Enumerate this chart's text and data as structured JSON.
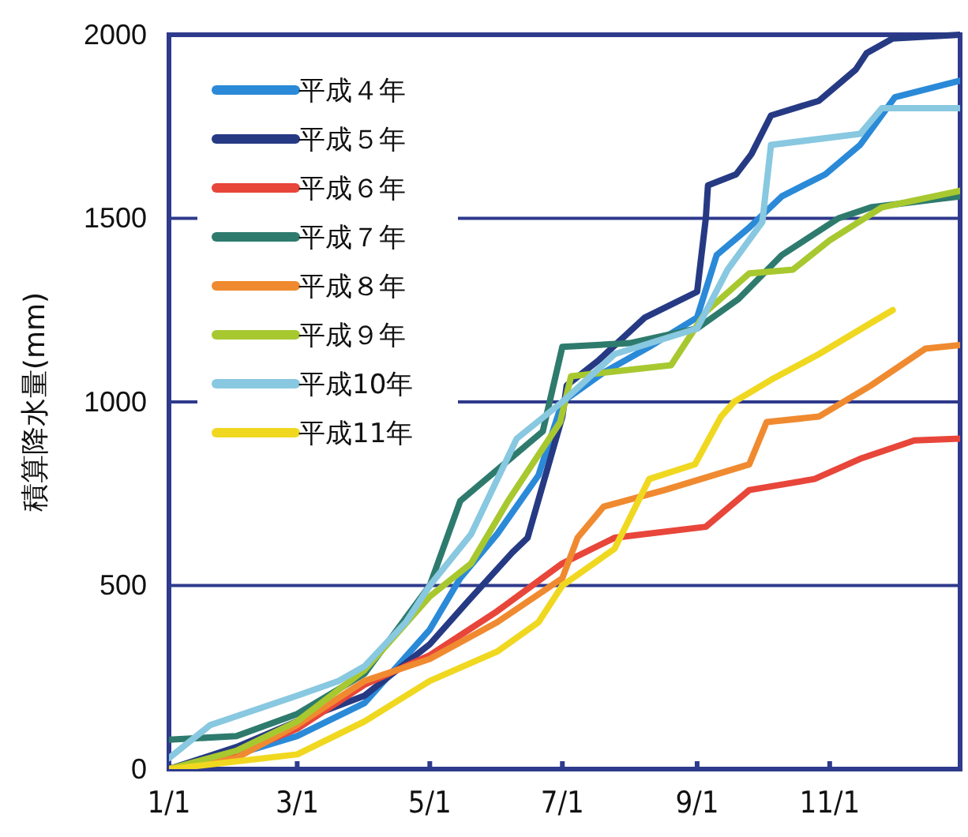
{
  "chart_data": {
    "type": "line",
    "ylabel": "積算降水量(mm)",
    "xlim": [
      "--01-01",
      "--12-31"
    ],
    "xticks": [
      {
        "value": "--01-01",
        "label": "1/1"
      },
      {
        "value": "--03-01",
        "label": "3/1"
      },
      {
        "value": "--05-01",
        "label": "5/1"
      },
      {
        "value": "--07-01",
        "label": "7/1"
      },
      {
        "value": "--09-01",
        "label": "9/1"
      },
      {
        "value": "--11-01",
        "label": "11/1"
      }
    ],
    "ylim": [
      0,
      2000
    ],
    "yticks": [
      0,
      500,
      1000,
      1500,
      2000
    ],
    "grid": "y",
    "legend": "top left",
    "series": [
      {
        "name": "平成４年",
        "color": "#2a8ad8",
        "x": [
          "--01-01",
          "--02-01",
          "--03-01",
          "--04-01",
          "--05-01",
          "--05-15",
          "--06-01",
          "--06-20",
          "--07-01",
          "--07-20",
          "--08-10",
          "--09-01",
          "--09-10",
          "--09-25",
          "--10-10",
          "--10-30",
          "--11-15",
          "--12-01",
          "--12-31"
        ],
        "values": [
          0,
          40,
          90,
          180,
          380,
          520,
          640,
          800,
          1000,
          1080,
          1150,
          1230,
          1400,
          1475,
          1560,
          1620,
          1700,
          1830,
          1875
        ]
      },
      {
        "name": "平成５年",
        "color": "#263a84",
        "x": [
          "--01-01",
          "--02-01",
          "--03-01",
          "--04-01",
          "--05-01",
          "--05-19",
          "--06-08",
          "--06-15",
          "--07-01",
          "--07-03",
          "--07-18",
          "--08-08",
          "--09-01",
          "--09-05",
          "--09-06",
          "--09-19",
          "--09-26",
          "--10-05",
          "--10-27",
          "--11-13",
          "--11-18",
          "--11-30",
          "--12-31"
        ],
        "values": [
          0,
          60,
          130,
          200,
          340,
          460,
          590,
          630,
          960,
          1045,
          1115,
          1230,
          1300,
          1500,
          1590,
          1620,
          1675,
          1780,
          1820,
          1905,
          1950,
          1990,
          2000
        ]
      },
      {
        "name": "平成６年",
        "color": "#e8463a",
        "x": [
          "--01-01",
          "--02-01",
          "--03-01",
          "--04-01",
          "--05-01",
          "--06-01",
          "--07-01",
          "--07-25",
          "--09-05",
          "--09-25",
          "--10-25",
          "--11-15",
          "--12-10",
          "--12-31"
        ],
        "values": [
          0,
          40,
          110,
          230,
          310,
          430,
          560,
          630,
          660,
          760,
          790,
          845,
          895,
          900
        ]
      },
      {
        "name": "平成７年",
        "color": "#2e7b6e",
        "x": [
          "--01-01",
          "--02-01",
          "--03-01",
          "--04-01",
          "--05-01",
          "--05-15",
          "--06-08",
          "--06-22",
          "--07-01",
          "--08-01",
          "--09-01",
          "--09-20",
          "--10-10",
          "--11-05",
          "--11-20",
          "--12-31"
        ],
        "values": [
          80,
          90,
          150,
          260,
          500,
          730,
          850,
          920,
          1150,
          1160,
          1200,
          1280,
          1400,
          1500,
          1530,
          1560
        ]
      },
      {
        "name": "平成８年",
        "color": "#f08a30",
        "x": [
          "--01-01",
          "--02-01",
          "--03-01",
          "--04-01",
          "--05-01",
          "--06-01",
          "--07-01",
          "--07-08",
          "--07-20",
          "--08-17",
          "--09-25",
          "--10-03",
          "--10-27",
          "--11-20",
          "--12-15",
          "--12-31"
        ],
        "values": [
          0,
          30,
          120,
          240,
          300,
          400,
          520,
          630,
          715,
          760,
          830,
          945,
          960,
          1045,
          1145,
          1155
        ]
      },
      {
        "name": "平成９年",
        "color": "#a8c830",
        "x": [
          "--01-01",
          "--02-01",
          "--03-01",
          "--04-01",
          "--05-01",
          "--05-20",
          "--06-06",
          "--06-30",
          "--07-05",
          "--08-20",
          "--09-05",
          "--09-25",
          "--10-15",
          "--11-01",
          "--11-25",
          "--12-31"
        ],
        "values": [
          0,
          50,
          130,
          270,
          470,
          560,
          730,
          945,
          1070,
          1100,
          1245,
          1350,
          1360,
          1440,
          1530,
          1575
        ]
      },
      {
        "name": "平成10年",
        "color": "#88c8e0",
        "x": [
          "--01-01",
          "--01-20",
          "--03-01",
          "--03-20",
          "--04-01",
          "--04-20",
          "--05-01",
          "--05-20",
          "--06-10",
          "--07-01",
          "--07-25",
          "--09-01",
          "--09-15",
          "--10-01",
          "--10-05",
          "--11-15",
          "--11-25",
          "--12-31"
        ],
        "values": [
          30,
          120,
          200,
          240,
          280,
          400,
          500,
          640,
          900,
          1000,
          1130,
          1200,
          1360,
          1490,
          1700,
          1730,
          1800,
          1800
        ]
      },
      {
        "name": "平成11年",
        "color": "#f0d820",
        "x": [
          "--01-01",
          "--03-01",
          "--04-01",
          "--05-01",
          "--06-01",
          "--06-20",
          "--07-01",
          "--07-25",
          "--08-10",
          "--08-31",
          "--09-12",
          "--09-18",
          "--10-05",
          "--10-27",
          "--11-20",
          "--11-30"
        ],
        "values": [
          0,
          40,
          130,
          240,
          320,
          400,
          500,
          600,
          790,
          830,
          960,
          1000,
          1060,
          1130,
          1215,
          1250
        ]
      }
    ]
  }
}
